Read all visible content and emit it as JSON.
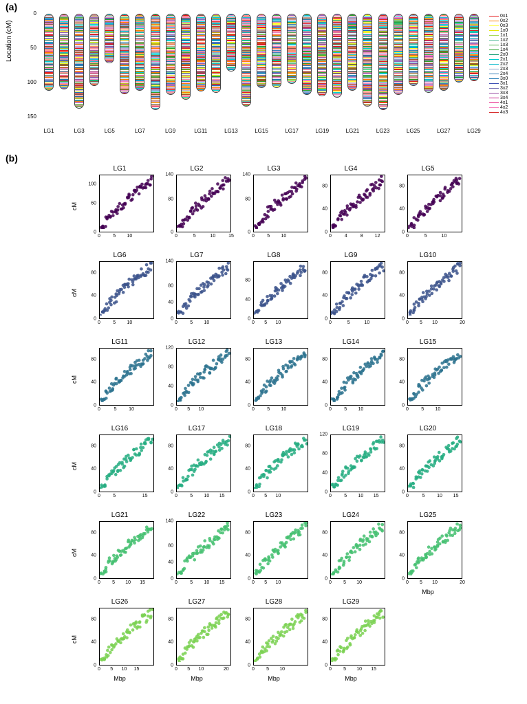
{
  "panel_a_label": "(a)",
  "panel_b_label": "(b)",
  "panel_a": {
    "ylabel": "Location (cM)",
    "yticks": [
      0,
      50,
      100,
      150
    ],
    "ymax_cm": 160,
    "chrom_labels": [
      "LG1",
      "LG3",
      "LG5",
      "LG7",
      "LG9",
      "LG11",
      "LG13",
      "LG15",
      "LG17",
      "LG19",
      "LG21",
      "LG23",
      "LG25",
      "LG27",
      "LG29"
    ],
    "chrom_lengths_cm": [
      112,
      110,
      138,
      105,
      72,
      117,
      112,
      140,
      118,
      125,
      113,
      115,
      84,
      135,
      108,
      108,
      102,
      118,
      120,
      122,
      112,
      135,
      140,
      118,
      105,
      115,
      112,
      100,
      98
    ],
    "n_chrom": 29,
    "band_colors": [
      "#e41a1c",
      "#ff7f00",
      "#ffff33",
      "#4daf4a",
      "#377eb8",
      "#984ea3",
      "#a65628",
      "#f781bf",
      "#66c2a5",
      "#8da0cb",
      "#fc8d62",
      "#e78ac3",
      "#00ced1",
      "#1f77b4",
      "#2ca02c",
      "#d62728",
      "#9467bd",
      "#8c564b",
      "#c49c94",
      "#bcbd22",
      "#17becf",
      "#ff9896",
      "#c5b0d5"
    ],
    "legend_items": [
      {
        "label": "0x1",
        "color": "#e41a1c"
      },
      {
        "label": "0x2",
        "color": "#ff7f00"
      },
      {
        "label": "0x3",
        "color": "#ffff33"
      },
      {
        "label": "1x0",
        "color": "#e6e600"
      },
      {
        "label": "1x1",
        "color": "#a6d854"
      },
      {
        "label": "1x2",
        "color": "#66c2a5"
      },
      {
        "label": "1x3",
        "color": "#4daf4a"
      },
      {
        "label": "1x4",
        "color": "#2ca02c"
      },
      {
        "label": "2x0",
        "color": "#1b9e77"
      },
      {
        "label": "2x1",
        "color": "#00ced1"
      },
      {
        "label": "2x2",
        "color": "#17becf"
      },
      {
        "label": "2x3",
        "color": "#8da0cb"
      },
      {
        "label": "2x4",
        "color": "#377eb8"
      },
      {
        "label": "3x0",
        "color": "#1f77b4"
      },
      {
        "label": "3x1",
        "color": "#3f51b5"
      },
      {
        "label": "3x2",
        "color": "#7570b3"
      },
      {
        "label": "3x3",
        "color": "#984ea3"
      },
      {
        "label": "3x4",
        "color": "#c51b8a"
      },
      {
        "label": "4x1",
        "color": "#e7298a"
      },
      {
        "label": "4x2",
        "color": "#f781bf"
      },
      {
        "label": "4x3",
        "color": "#d62728"
      }
    ]
  },
  "panel_b": {
    "ylabel": "cM",
    "xlabel": "Mbp",
    "row_colors": [
      "#440154",
      "#3b528b",
      "#2c728e",
      "#26ad81",
      "#44bf70",
      "#7ad151",
      "#bddf26"
    ],
    "plots": [
      {
        "title": "LG1",
        "xmax": 18,
        "ymax": 120,
        "yticks": [
          0,
          60,
          100
        ],
        "xticks": [
          0,
          5,
          10
        ],
        "row": 0
      },
      {
        "title": "LG2",
        "xmax": 15,
        "ymax": 140,
        "yticks": [
          0,
          80,
          140
        ],
        "xticks": [
          0,
          5,
          10,
          15
        ],
        "row": 0
      },
      {
        "title": "LG3",
        "xmax": 18,
        "ymax": 140,
        "yticks": [
          0,
          80,
          140
        ],
        "xticks": [
          0,
          5,
          10
        ],
        "row": 0
      },
      {
        "title": "LG4",
        "xmax": 14,
        "ymax": 100,
        "yticks": [
          0,
          40,
          80
        ],
        "xticks": [
          0,
          4,
          8,
          12
        ],
        "row": 0
      },
      {
        "title": "LG5",
        "xmax": 15,
        "ymax": 100,
        "yticks": [
          0,
          40,
          80
        ],
        "xticks": [
          0,
          5,
          10
        ],
        "row": 0
      },
      {
        "title": "LG6",
        "xmax": 18,
        "ymax": 100,
        "yticks": [
          0,
          40,
          80
        ],
        "xticks": [
          0,
          5,
          10
        ],
        "row": 1
      },
      {
        "title": "LG7",
        "xmax": 18,
        "ymax": 140,
        "yticks": [
          0,
          40,
          80,
          140
        ],
        "xticks": [
          0,
          5,
          10
        ],
        "row": 1
      },
      {
        "title": "LG8",
        "xmax": 22,
        "ymax": 120,
        "yticks": [
          0,
          40,
          80
        ],
        "xticks": [
          0,
          5,
          10
        ],
        "row": 1
      },
      {
        "title": "LG9",
        "xmax": 15,
        "ymax": 100,
        "yticks": [
          0,
          40,
          80
        ],
        "xticks": [
          0,
          5,
          10
        ],
        "row": 1
      },
      {
        "title": "LG10",
        "xmax": 20,
        "ymax": 100,
        "yticks": [
          0,
          40,
          80
        ],
        "xticks": [
          0,
          5,
          10,
          20
        ],
        "row": 1
      },
      {
        "title": "LG11",
        "xmax": 17,
        "ymax": 100,
        "yticks": [
          0,
          40,
          80
        ],
        "xticks": [
          0,
          5,
          10
        ],
        "row": 2
      },
      {
        "title": "LG12",
        "xmax": 22,
        "ymax": 120,
        "yticks": [
          0,
          40,
          80,
          120
        ],
        "xticks": [
          0,
          5,
          10
        ],
        "row": 2
      },
      {
        "title": "LG13",
        "xmax": 18,
        "ymax": 100,
        "yticks": [
          0,
          40,
          80
        ],
        "xticks": [
          0,
          5,
          10
        ],
        "row": 2
      },
      {
        "title": "LG14",
        "xmax": 18,
        "ymax": 100,
        "yticks": [
          0,
          40,
          80
        ],
        "xticks": [
          0,
          5,
          10
        ],
        "row": 2
      },
      {
        "title": "LG15",
        "xmax": 18,
        "ymax": 100,
        "yticks": [
          0,
          40,
          80
        ],
        "xticks": [
          0,
          5,
          10
        ],
        "row": 2
      },
      {
        "title": "LG16",
        "xmax": 18,
        "ymax": 100,
        "yticks": [
          0,
          40,
          80
        ],
        "xticks": [
          0,
          5,
          15
        ],
        "row": 3
      },
      {
        "title": "LG17",
        "xmax": 18,
        "ymax": 100,
        "yticks": [
          0,
          40,
          80
        ],
        "xticks": [
          0,
          5,
          10,
          15
        ],
        "row": 3
      },
      {
        "title": "LG18",
        "xmax": 22,
        "ymax": 100,
        "yticks": [
          0,
          40,
          80
        ],
        "xticks": [
          0,
          5,
          10
        ],
        "row": 3
      },
      {
        "title": "LG19",
        "xmax": 18,
        "ymax": 120,
        "yticks": [
          0,
          40,
          80,
          120
        ],
        "xticks": [
          0,
          5,
          10,
          15
        ],
        "row": 3
      },
      {
        "title": "LG20",
        "xmax": 17,
        "ymax": 100,
        "yticks": [
          0,
          40,
          80
        ],
        "xticks": [
          0,
          5,
          10,
          15
        ],
        "row": 3
      },
      {
        "title": "LG21",
        "xmax": 19,
        "ymax": 100,
        "yticks": [
          0,
          40,
          80
        ],
        "xticks": [
          0,
          5,
          10,
          15
        ],
        "row": 4
      },
      {
        "title": "LG22",
        "xmax": 18,
        "ymax": 140,
        "yticks": [
          0,
          40,
          80,
          140
        ],
        "xticks": [
          0,
          5,
          10,
          15
        ],
        "row": 4
      },
      {
        "title": "LG23",
        "xmax": 22,
        "ymax": 100,
        "yticks": [
          0,
          40,
          80
        ],
        "xticks": [
          0,
          5,
          10
        ],
        "row": 4
      },
      {
        "title": "LG24",
        "xmax": 19,
        "ymax": 100,
        "yticks": [
          0,
          40,
          80
        ],
        "xticks": [
          0,
          5,
          10
        ],
        "row": 4
      },
      {
        "title": "LG25",
        "xmax": 20,
        "ymax": 100,
        "yticks": [
          0,
          40,
          80
        ],
        "xticks": [
          0,
          5,
          10,
          20
        ],
        "row": 4,
        "xlabel_here": true
      },
      {
        "title": "LG26",
        "xmax": 22,
        "ymax": 100,
        "yticks": [
          0,
          40,
          80
        ],
        "xticks": [
          0,
          5,
          10,
          15
        ],
        "row": 5,
        "xlabel_here": true
      },
      {
        "title": "LG27",
        "xmax": 22,
        "ymax": 100,
        "yticks": [
          0,
          40,
          80
        ],
        "xticks": [
          0,
          5,
          10,
          20
        ],
        "row": 5,
        "xlabel_here": true
      },
      {
        "title": "LG28",
        "xmax": 19,
        "ymax": 100,
        "yticks": [
          0,
          40,
          80
        ],
        "xticks": [
          0,
          5,
          10
        ],
        "row": 5,
        "xlabel_here": true
      },
      {
        "title": "LG29",
        "xmax": 19,
        "ymax": 100,
        "yticks": [
          0,
          40,
          80
        ],
        "xticks": [
          0,
          5,
          10,
          15
        ],
        "row": 5,
        "xlabel_here": true
      }
    ],
    "marker_size": 3,
    "marker_opacity": 0.85,
    "n_points_per_plot": 60
  }
}
